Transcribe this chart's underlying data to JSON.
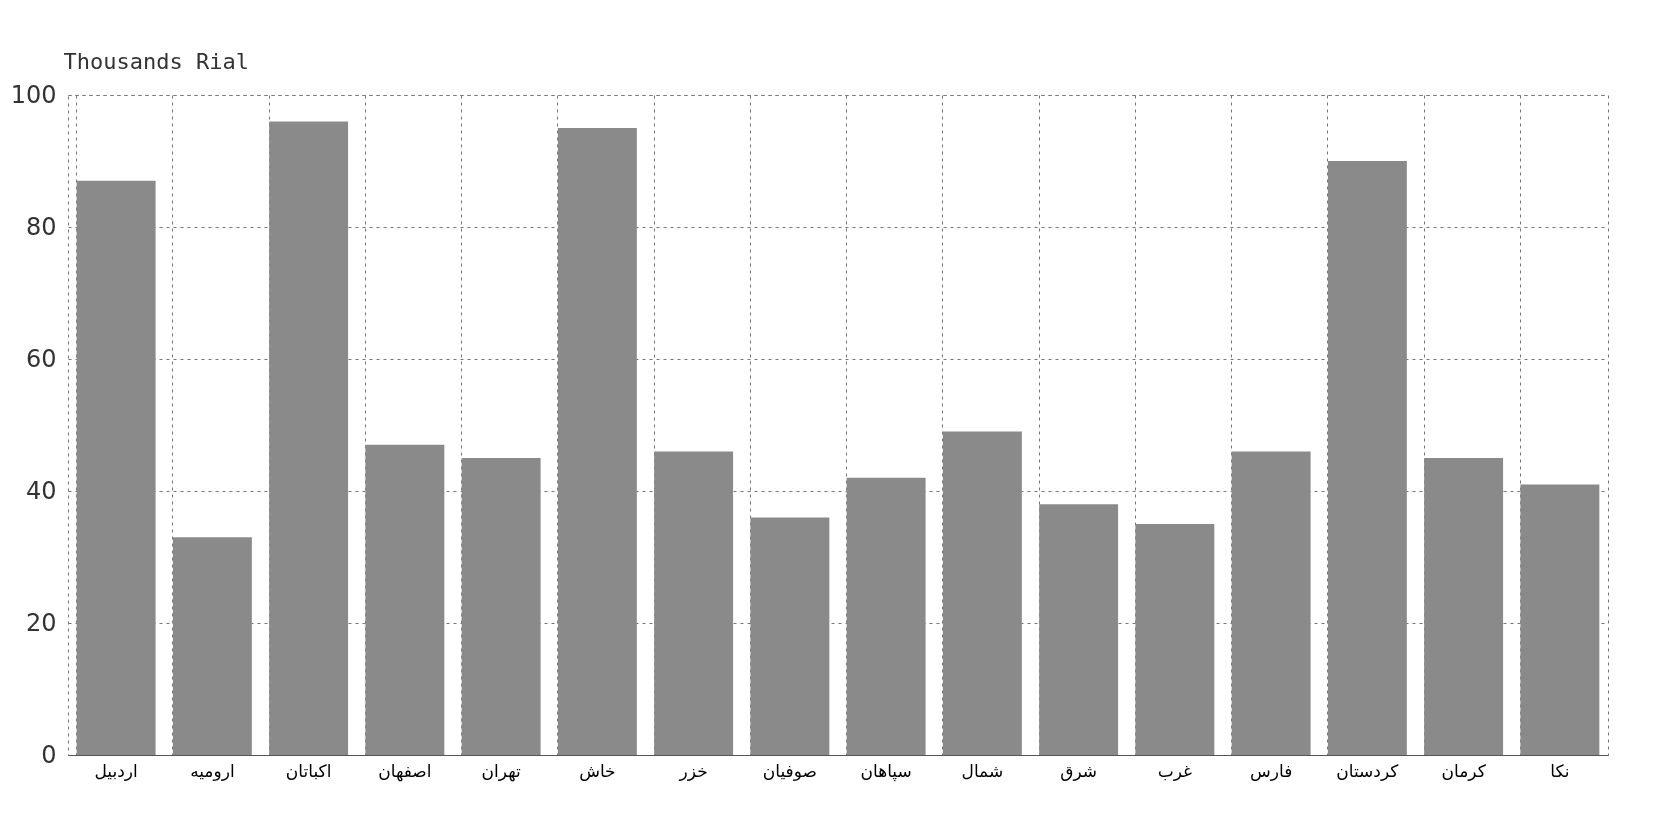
{
  "chart_data": {
    "type": "bar",
    "ylabel": "Thousands Rial",
    "categories": [
      "اردبیل",
      "ارومیه",
      "اکباتان",
      "اصفهان",
      "تهران",
      "خاش",
      "خزر",
      "صوفیان",
      "سپاهان",
      "شمال",
      "شرق",
      "غرب",
      "فارس",
      "کردستان",
      "کرمان",
      "نکا"
    ],
    "values": [
      87,
      33,
      96,
      47,
      45,
      95,
      46,
      36,
      42,
      49,
      38,
      35,
      46,
      90,
      45,
      41
    ],
    "color": "#8a8a8a",
    "ylim": [
      0,
      100
    ],
    "yticks": [
      0,
      20,
      40,
      60,
      80,
      100
    ],
    "grid": true
  }
}
